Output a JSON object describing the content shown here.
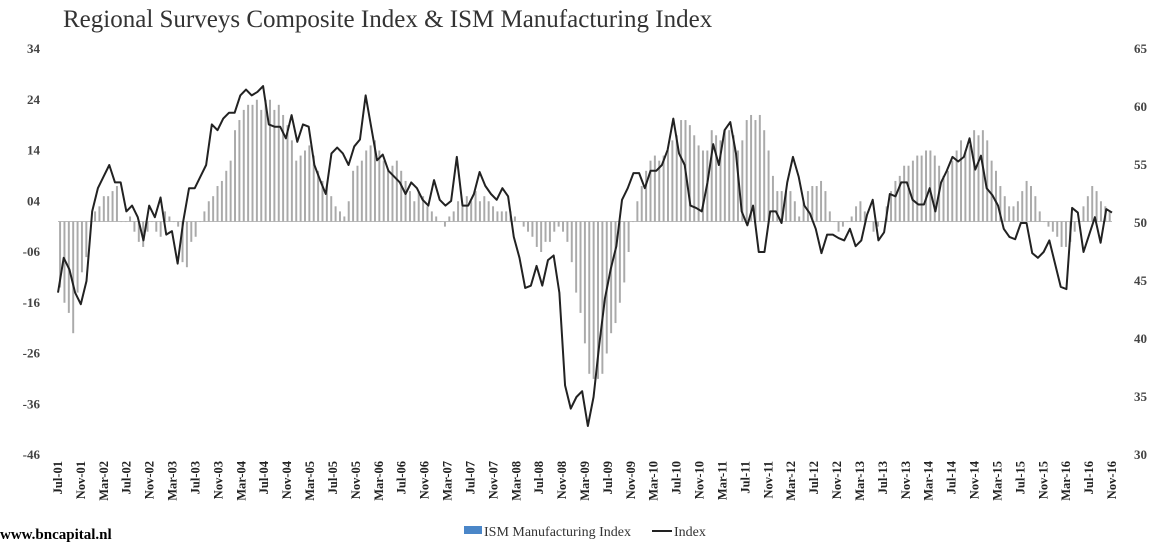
{
  "chart_data": {
    "type": "bar+line",
    "title": "Regional Surveys Composite Index & ISM Manufacturing Index",
    "left_axis": {
      "range": [
        -46,
        34
      ],
      "ticks": [
        34,
        24,
        14,
        4,
        -6,
        -16,
        -26,
        -36,
        -46
      ],
      "tick_labels": [
        "34",
        "24",
        "14",
        "04",
        "-06",
        "-16",
        "-26",
        "-36",
        "-46"
      ]
    },
    "right_axis": {
      "range": [
        30,
        65
      ],
      "ticks": [
        65,
        60,
        55,
        50,
        45,
        40,
        35,
        30
      ]
    },
    "x_tick_labels": [
      "Jul-01",
      "Nov-01",
      "Mar-02",
      "Jul-02",
      "Nov-02",
      "Mar-03",
      "Jul-03",
      "Nov-03",
      "Mar-04",
      "Jul-04",
      "Nov-04",
      "Mar-05",
      "Jul-05",
      "Nov-05",
      "Mar-06",
      "Jul-06",
      "Nov-06",
      "Mar-07",
      "Jul-07",
      "Nov-07",
      "Mar-08",
      "Jul-08",
      "Nov-08",
      "Mar-09",
      "Jul-09",
      "Nov-09",
      "Mar-10",
      "Jul-10",
      "Nov-10",
      "Mar-11",
      "Jul-11",
      "Nov-11",
      "Mar-12",
      "Jul-12",
      "Nov-12",
      "Mar-13",
      "Jul-13",
      "Nov-13",
      "Mar-14",
      "Jul-14",
      "Nov-14",
      "Mar-15",
      "Jul-15",
      "Nov-15",
      "Mar-16",
      "Jul-16",
      "Nov-16"
    ],
    "series": [
      {
        "name": "ISM Manufacturing Index",
        "type": "bar",
        "axis": "left",
        "color": "#aaaaaa",
        "legend_color": "#4a86c8",
        "values": [
          -13,
          -16,
          -18,
          -22,
          -14,
          -10,
          -7,
          0,
          2,
          3,
          5,
          5,
          6,
          7,
          0,
          0,
          1,
          -2,
          -4,
          -5,
          -2,
          0,
          -2,
          -3,
          2,
          1,
          0,
          -1,
          -8,
          -9,
          -4,
          -3,
          0,
          2,
          4,
          5,
          7,
          8,
          10,
          12,
          18,
          20,
          22,
          23,
          23,
          24,
          22,
          24,
          24,
          22,
          23,
          21,
          19,
          16,
          12,
          13,
          14,
          15,
          13,
          10,
          8,
          7,
          5,
          3,
          2,
          1,
          4,
          10,
          11,
          12,
          14,
          15,
          16,
          14,
          12,
          10,
          11,
          12,
          10,
          8,
          6,
          4,
          6,
          5,
          3,
          2,
          1,
          0,
          -1,
          1,
          2,
          4,
          3,
          5,
          4,
          6,
          4,
          5,
          4,
          3,
          2,
          2,
          2,
          2,
          1,
          0,
          -1,
          -2,
          -3,
          -5,
          -6,
          -4,
          -4,
          -2,
          -1,
          -2,
          -4,
          -8,
          -14,
          -18,
          -24,
          -30,
          -31,
          -31,
          -30,
          -26,
          -22,
          -20,
          -16,
          -12,
          -6,
          0,
          4,
          7,
          10,
          12,
          13,
          12,
          13,
          14,
          16,
          17,
          20,
          20,
          19,
          17,
          15,
          14,
          14,
          18,
          17,
          16,
          18,
          18,
          17,
          14,
          16,
          20,
          21,
          20,
          21,
          18,
          14,
          9,
          6,
          6,
          6,
          6,
          4,
          1,
          4,
          6,
          7,
          7,
          8,
          6,
          2,
          0,
          -2,
          -1,
          0,
          1,
          3,
          4,
          2,
          0,
          -2,
          -1,
          0,
          3,
          6,
          8,
          9,
          11,
          11,
          12,
          13,
          13,
          14,
          14,
          13,
          11,
          9,
          10,
          12,
          14,
          16,
          14,
          15,
          18,
          17,
          18,
          16,
          12,
          10,
          7,
          5,
          3,
          3,
          4,
          6,
          8,
          7,
          5,
          2,
          0,
          -1,
          -2,
          -3,
          -5,
          -5,
          -4,
          -2,
          0,
          3,
          5,
          7,
          6,
          4,
          3,
          2
        ]
      },
      {
        "name": "Index",
        "type": "line",
        "axis": "right",
        "color": "#222222",
        "values": [
          44,
          47,
          46,
          44,
          43,
          45,
          51,
          53,
          54,
          55,
          53.5,
          53.5,
          51,
          51.5,
          50.5,
          48.5,
          51.5,
          50.5,
          52.2,
          49,
          49.3,
          46.5,
          50.2,
          53,
          53,
          54,
          55,
          58.5,
          58,
          59,
          59.5,
          59.5,
          61,
          61.5,
          61,
          61.3,
          61.8,
          58.5,
          58.3,
          58.3,
          57.3,
          59.3,
          57,
          58.5,
          58.3,
          55,
          53.7,
          52.5,
          56,
          56.5,
          56,
          55,
          56.6,
          57.2,
          61,
          58.2,
          55.4,
          55.9,
          54.5,
          54,
          53.5,
          52.5,
          53.5,
          53,
          52,
          51.5,
          53.7,
          52,
          51.5,
          51.9,
          55.7,
          51.5,
          51.5,
          52.5,
          54.4,
          53.2,
          52.5,
          52,
          53,
          52.3,
          48.8,
          47,
          44.4,
          44.6,
          46.3,
          44.6,
          46.8,
          47.2,
          44,
          36,
          34,
          35,
          35.5,
          32.5,
          35,
          39.5,
          43.5,
          46,
          48,
          52,
          53,
          54.3,
          54.3,
          53,
          54.5,
          54.5,
          55,
          56.3,
          59,
          56,
          55,
          51.5,
          51.3,
          51,
          53.5,
          56.8,
          55,
          58,
          58.7,
          56,
          51,
          49.8,
          51.5,
          47.5,
          47.5,
          51,
          51,
          50,
          53.5,
          55.7,
          54,
          51.5,
          50.8,
          49.5,
          47.4,
          49,
          49,
          48.7,
          48.5,
          49.5,
          48,
          48.5,
          50.7,
          52,
          48.5,
          49.2,
          52.5,
          52.3,
          53.5,
          53.5,
          52,
          51.6,
          51.6,
          53,
          51,
          53.5,
          54.5,
          55.7,
          55.3,
          55.7,
          57.3,
          54.6,
          55.8,
          53,
          52.4,
          51.5,
          49.5,
          48.8,
          48.6,
          50,
          50,
          47.4,
          47,
          47.5,
          48.5,
          46.5,
          44.5,
          44.3,
          51.3,
          50.9,
          47.5,
          49,
          50.5,
          48.3,
          51.2,
          50.9
        ]
      }
    ],
    "legend": {
      "position": "bottom-center",
      "items": [
        "ISM Manufacturing Index",
        "Index"
      ]
    },
    "grid": false
  },
  "footer": {
    "text": "www.bncapital.nl"
  }
}
